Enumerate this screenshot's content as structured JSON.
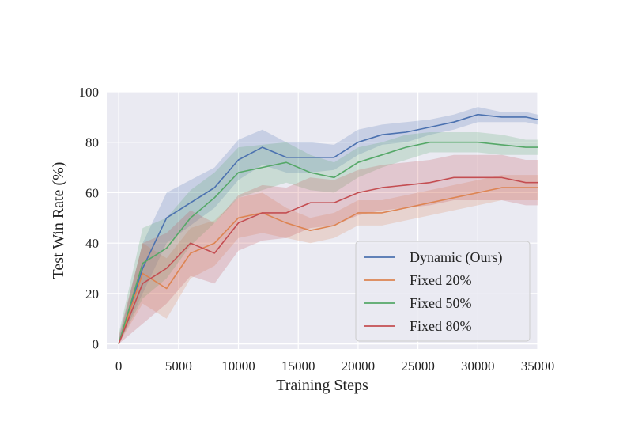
{
  "chart_data": {
    "type": "line",
    "title": "",
    "xlabel": "Training Steps",
    "ylabel": "Test Win Rate (%)",
    "xlim": [
      -1000,
      35000
    ],
    "ylim": [
      -2,
      100
    ],
    "xticks": [
      0,
      5000,
      10000,
      15000,
      20000,
      25000,
      30000,
      35000
    ],
    "xtick_labels": [
      "0",
      "5000",
      "10000",
      "15000",
      "20000",
      "25000",
      "30000",
      "35000"
    ],
    "yticks": [
      0,
      20,
      40,
      60,
      80,
      100
    ],
    "ytick_labels": [
      "0",
      "20",
      "40",
      "60",
      "80",
      "100"
    ],
    "grid": true,
    "legend_position": "lower-right",
    "x": [
      0,
      2000,
      4000,
      6000,
      8000,
      10000,
      12000,
      14000,
      16000,
      18000,
      20000,
      22000,
      24000,
      26000,
      28000,
      30000,
      32000,
      34000,
      35000
    ],
    "series": [
      {
        "name": "Dynamic (Ours)",
        "color": "#4c72b0",
        "values": [
          0,
          30,
          50,
          56,
          62,
          73,
          78,
          74,
          74,
          74,
          80,
          83,
          84,
          86,
          88,
          91,
          90,
          90,
          89
        ],
        "band": [
          2,
          10,
          10,
          9,
          8,
          8,
          7,
          6,
          6,
          5,
          5,
          4,
          4,
          3,
          3,
          3,
          2,
          2,
          2
        ]
      },
      {
        "name": "Fixed 20%",
        "color": "#dd8452",
        "values": [
          0,
          28,
          22,
          36,
          40,
          50,
          52,
          48,
          45,
          47,
          52,
          52,
          54,
          56,
          58,
          60,
          62,
          62,
          62
        ],
        "band": [
          1,
          12,
          12,
          10,
          9,
          8,
          8,
          6,
          5,
          5,
          5,
          5,
          5,
          5,
          5,
          5,
          5,
          5,
          5
        ]
      },
      {
        "name": "Fixed 50%",
        "color": "#55a868",
        "values": [
          0,
          32,
          38,
          50,
          58,
          68,
          70,
          72,
          68,
          66,
          72,
          75,
          78,
          80,
          80,
          80,
          79,
          78,
          78
        ],
        "band": [
          4,
          14,
          12,
          11,
          10,
          10,
          9,
          8,
          7,
          6,
          6,
          5,
          5,
          4,
          4,
          4,
          4,
          3,
          3
        ]
      },
      {
        "name": "Fixed 80%",
        "color": "#c44e52",
        "values": [
          0,
          24,
          30,
          40,
          36,
          48,
          52,
          52,
          56,
          56,
          60,
          62,
          63,
          64,
          66,
          66,
          66,
          64,
          64
        ],
        "band": [
          3,
          16,
          14,
          13,
          12,
          11,
          11,
          10,
          10,
          9,
          9,
          9,
          9,
          9,
          9,
          9,
          9,
          9,
          9
        ]
      }
    ]
  }
}
